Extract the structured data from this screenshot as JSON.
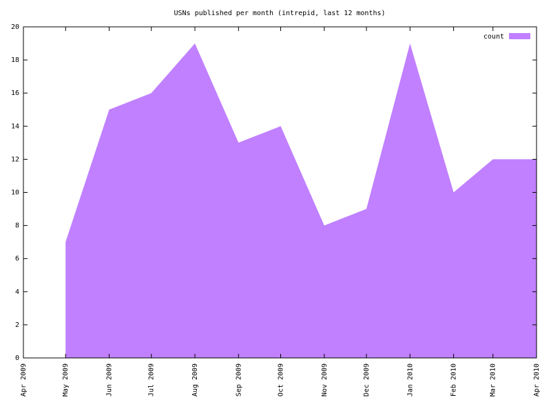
{
  "chart_data": {
    "type": "area",
    "title": "USNs published per month (intrepid, last 12 months)",
    "x": [
      "2009-05",
      "2009-06",
      "2009-07",
      "2009-08",
      "2009-09",
      "2009-10",
      "2009-11",
      "2009-12",
      "2010-01",
      "2010-02",
      "2010-03",
      "2010-04"
    ],
    "series": [
      {
        "name": "count",
        "color": "#c080ff",
        "values": [
          7,
          15,
          16,
          19,
          13,
          14,
          8,
          9,
          19,
          10,
          12,
          12
        ]
      }
    ],
    "xlim": [
      "2009-04",
      "2010-04"
    ],
    "xticks": [
      {
        "value": "2009-04",
        "label": "Apr 2009"
      },
      {
        "value": "2009-05",
        "label": "May 2009"
      },
      {
        "value": "2009-06",
        "label": "Jun 2009"
      },
      {
        "value": "2009-07",
        "label": "Jul 2009"
      },
      {
        "value": "2009-08",
        "label": "Aug 2009"
      },
      {
        "value": "2009-09",
        "label": "Sep 2009"
      },
      {
        "value": "2009-10",
        "label": "Oct 2009"
      },
      {
        "value": "2009-11",
        "label": "Nov 2009"
      },
      {
        "value": "2009-12",
        "label": "Dec 2009"
      },
      {
        "value": "2010-01",
        "label": "Jan 2010"
      },
      {
        "value": "2010-02",
        "label": "Feb 2010"
      },
      {
        "value": "2010-03",
        "label": "Mar 2010"
      },
      {
        "value": "2010-04",
        "label": "Apr 2010"
      }
    ],
    "ylim": [
      0,
      20
    ],
    "yticks": [
      0,
      2,
      4,
      6,
      8,
      10,
      12,
      14,
      16,
      18,
      20
    ],
    "legend": "upper right"
  }
}
